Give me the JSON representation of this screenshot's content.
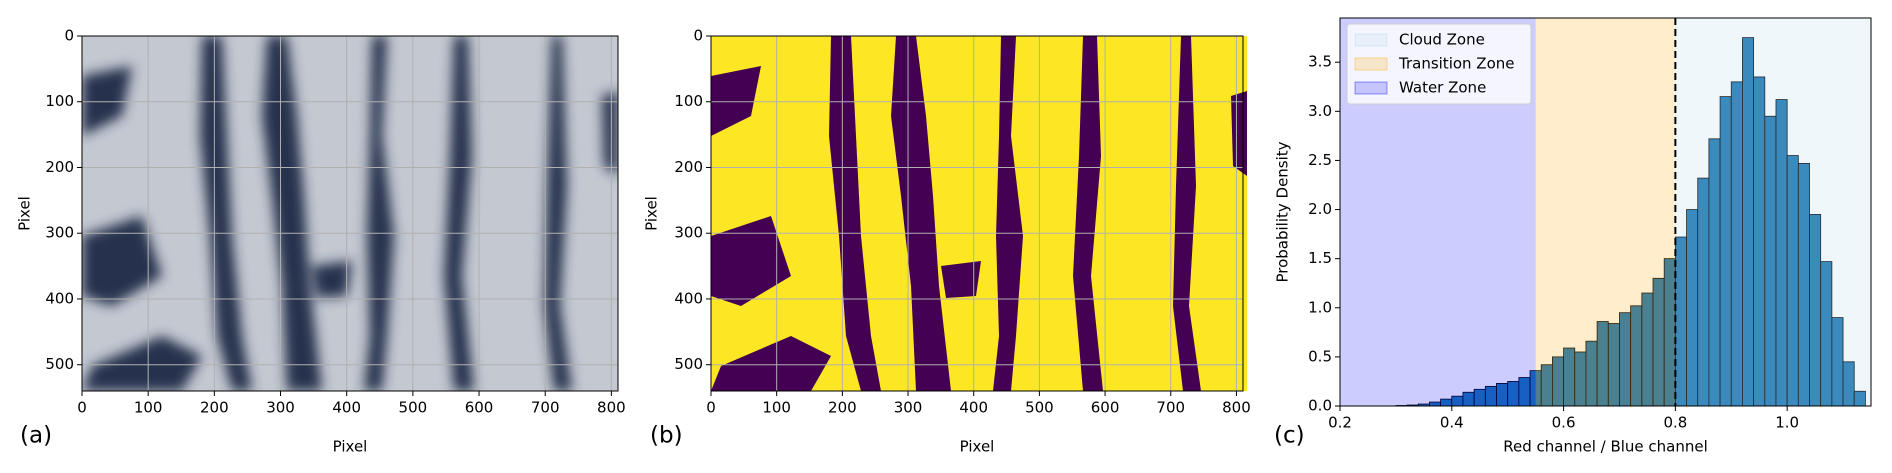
{
  "chart_data": [
    {
      "type": "image",
      "panel_label": "(a)",
      "xlabel": "Pixel",
      "ylabel": "Pixel",
      "xlim": [
        0,
        810
      ],
      "ylim": [
        540,
        0
      ],
      "xticks": [
        0,
        100,
        200,
        300,
        400,
        500,
        600,
        700,
        800
      ],
      "yticks": [
        0,
        100,
        200,
        300,
        400,
        500
      ],
      "grid": true
    },
    {
      "type": "mask",
      "panel_label": "(b)",
      "xlabel": "Pixel",
      "ylabel": "Pixel",
      "xlim": [
        0,
        810
      ],
      "ylim": [
        540,
        0
      ],
      "xticks": [
        0,
        100,
        200,
        300,
        400,
        500,
        600,
        700,
        800
      ],
      "yticks": [
        0,
        100,
        200,
        300,
        400,
        500
      ],
      "grid": true
    },
    {
      "type": "histogram",
      "panel_label": "(c)",
      "xlabel": "Red channel / Blue channel",
      "ylabel": "Probability Density",
      "bins": [
        0.2,
        0.22,
        0.24,
        0.26,
        0.28,
        0.3,
        0.32,
        0.34,
        0.36,
        0.38,
        0.4,
        0.42,
        0.44,
        0.46,
        0.48,
        0.5,
        0.52,
        0.54,
        0.56,
        0.58,
        0.6,
        0.62,
        0.64,
        0.66,
        0.68,
        0.7,
        0.72,
        0.74,
        0.76,
        0.78,
        0.8,
        0.82,
        0.84,
        0.86,
        0.88,
        0.9,
        0.92,
        0.94,
        0.96,
        0.98,
        1,
        1.02,
        1.04,
        1.06,
        1.08,
        1.1,
        1.12,
        1.14
      ],
      "values": [
        0,
        0,
        0,
        0,
        0,
        0.005,
        0.01,
        0.02,
        0.04,
        0.07,
        0.1,
        0.14,
        0.17,
        0.2,
        0.23,
        0.25,
        0.29,
        0.36,
        0.42,
        0.5,
        0.59,
        0.55,
        0.66,
        0.86,
        0.84,
        0.95,
        1.02,
        1.15,
        1.3,
        1.5,
        1.72,
        2.0,
        2.32,
        2.72,
        3.15,
        3.3,
        3.75,
        3.35,
        2.95,
        3.12,
        2.55,
        2.47,
        1.95,
        1.47,
        0.9,
        0.45,
        0.15
      ],
      "color": "#1f77b4",
      "zones": [
        {
          "name": "Cloud Zone",
          "color": "#add8e6",
          "range": [
            0.8,
            1.15
          ]
        },
        {
          "name": "Transition Zone",
          "color": "#ffa500",
          "range": [
            0.55,
            0.8
          ]
        },
        {
          "name": "Water Zone",
          "color": "#0000ff",
          "range": [
            0.2,
            0.55
          ]
        }
      ],
      "zone_alpha": 0.2,
      "threshold": 0.8,
      "legend": "upper left",
      "xlim": [
        0.2,
        1.15
      ],
      "ylim": [
        0,
        3.95
      ],
      "xticks": [
        0.2,
        0.4,
        0.6,
        0.8,
        {
          "value": 1,
          "label": "1.0"
        }
      ],
      "yticks": [
        {
          "value": 0,
          "label": "0.0"
        },
        0.5,
        {
          "value": 1,
          "label": "1.0"
        },
        1.5,
        {
          "value": 2,
          "label": "2.0"
        },
        2.5,
        {
          "value": 3,
          "label": "3.0"
        },
        3.5
      ],
      "grid": false
    }
  ]
}
